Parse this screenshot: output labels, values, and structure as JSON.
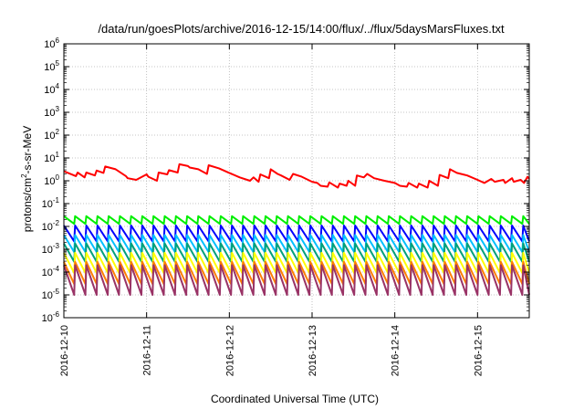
{
  "chart_data": {
    "type": "line",
    "title": "/data/run/goesPlots/archive/2016-12-15/14:00/flux/../flux/5daysMarsFluxes.txt",
    "xlabel": "Coordinated Universal Time (UTC)",
    "ylabel": "protons/cm²-s-sr-MeV",
    "yscale": "log",
    "ylim": [
      1e-06,
      1000000.0
    ],
    "xlim": [
      "2016-12-10",
      "2016-12-15 15:00"
    ],
    "grid": true,
    "legend": "none",
    "x_ticks": [
      "2016-12-10",
      "2016-12-11",
      "2016-12-12",
      "2016-12-13",
      "2016-12-14",
      "2016-12-15"
    ],
    "y_ticks": [
      {
        "base": "10",
        "exp": "-6"
      },
      {
        "base": "10",
        "exp": "-5"
      },
      {
        "base": "10",
        "exp": "-4"
      },
      {
        "base": "10",
        "exp": "-3"
      },
      {
        "base": "10",
        "exp": "-2"
      },
      {
        "base": "10",
        "exp": "-1"
      },
      {
        "base": "10",
        "exp": "0"
      },
      {
        "base": "10",
        "exp": "1"
      },
      {
        "base": "10",
        "exp": "2"
      },
      {
        "base": "10",
        "exp": "3"
      },
      {
        "base": "10",
        "exp": "4"
      },
      {
        "base": "10",
        "exp": "5"
      },
      {
        "base": "10",
        "exp": "6"
      }
    ],
    "series": [
      {
        "color": "#ff0000",
        "x": [
          "2016-12-10 00:00",
          "2016-12-10 03:30",
          "2016-12-10 04:00",
          "2016-12-10 06:00",
          "2016-12-10 06:30",
          "2016-12-10 09:00",
          "2016-12-10 09:30",
          "2016-12-10 11:30",
          "2016-12-10 12:00",
          "2016-12-10 15:00",
          "2016-12-10 18:00",
          "2016-12-10 18:30",
          "2016-12-10 21:00",
          "2016-12-11 00:00",
          "2016-12-11 00:30",
          "2016-12-11 03:00",
          "2016-12-11 03:30",
          "2016-12-11 06:00",
          "2016-12-11 06:30",
          "2016-12-11 09:00",
          "2016-12-11 09:30",
          "2016-12-11 12:00",
          "2016-12-11 12:30",
          "2016-12-11 15:00",
          "2016-12-11 17:30",
          "2016-12-11 18:00",
          "2016-12-11 21:00",
          "2016-12-12 00:00",
          "2016-12-12 03:00",
          "2016-12-12 06:00",
          "2016-12-12 07:00",
          "2016-12-12 08:30",
          "2016-12-12 09:00",
          "2016-12-12 11:30",
          "2016-12-12 12:00",
          "2016-12-12 14:00",
          "2016-12-12 15:00",
          "2016-12-12 17:30",
          "2016-12-12 18:30",
          "2016-12-12 21:00",
          "2016-12-13 00:00",
          "2016-12-13 01:30",
          "2016-12-13 02:30",
          "2016-12-13 04:30",
          "2016-12-13 05:00",
          "2016-12-13 07:30",
          "2016-12-13 08:00",
          "2016-12-13 10:00",
          "2016-12-13 10:30",
          "2016-12-13 12:30",
          "2016-12-13 13:00",
          "2016-12-13 15:00",
          "2016-12-13 16:00",
          "2016-12-13 18:00",
          "2016-12-13 21:00",
          "2016-12-14 00:00",
          "2016-12-14 01:30",
          "2016-12-14 03:30",
          "2016-12-14 04:00",
          "2016-12-14 06:30",
          "2016-12-14 07:00",
          "2016-12-14 09:30",
          "2016-12-14 10:00",
          "2016-12-14 12:30",
          "2016-12-14 13:00",
          "2016-12-14 15:30",
          "2016-12-14 16:00",
          "2016-12-14 18:00",
          "2016-12-14 21:00",
          "2016-12-15 00:00",
          "2016-12-15 02:00",
          "2016-12-15 04:00",
          "2016-12-15 05:00",
          "2016-12-15 07:30",
          "2016-12-15 08:00",
          "2016-12-15 10:00",
          "2016-12-15 10:30",
          "2016-12-15 12:30",
          "2016-12-15 13:30",
          "2016-12-15 14:30",
          "2016-12-15 15:00"
        ],
        "y": [
          2.6,
          1.6,
          2.3,
          1.4,
          2.3,
          1.7,
          2.8,
          2.2,
          4.2,
          3.2,
          1.6,
          1.3,
          1.1,
          1.9,
          1.5,
          1.0,
          2.3,
          1.9,
          2.9,
          2.3,
          5.3,
          4.4,
          3.8,
          3.2,
          2.0,
          4.8,
          3.5,
          2.2,
          1.4,
          1.0,
          1.4,
          0.9,
          1.9,
          1.3,
          3.2,
          2.0,
          1.7,
          1.1,
          2.0,
          1.5,
          0.9,
          0.8,
          0.6,
          0.55,
          0.85,
          0.5,
          0.75,
          0.6,
          1.0,
          0.6,
          1.7,
          1.4,
          2.0,
          1.3,
          1.0,
          0.8,
          0.6,
          0.55,
          0.8,
          0.5,
          0.75,
          0.5,
          1.0,
          0.6,
          1.8,
          1.3,
          3.2,
          2.2,
          1.7,
          1.1,
          0.8,
          1.2,
          0.9,
          1.1,
          0.8,
          1.3,
          0.9,
          1.1,
          0.8,
          1.5,
          1.2
        ]
      },
      {
        "color": "#00ee00",
        "x_start": "2016-12-10 00:00",
        "x_end": "2016-12-15 15:00",
        "period_hours": 3.25,
        "y_high": 0.028,
        "y_low": 0.013
      },
      {
        "color": "#0000ff",
        "x_start": "2016-12-10 00:00",
        "x_end": "2016-12-15 15:00",
        "period_hours": 3.25,
        "y_high": 0.011,
        "y_low": 0.0022
      },
      {
        "color": "#00bfff",
        "x_start": "2016-12-10 00:00",
        "x_end": "2016-12-15 15:00",
        "period_hours": 3.25,
        "y_high": 0.0042,
        "y_low": 0.00075
      },
      {
        "color": "#00a07a",
        "x_start": "2016-12-10 00:00",
        "x_end": "2016-12-15 15:00",
        "period_hours": 3.25,
        "y_high": 0.0018,
        "y_low": 0.00028
      },
      {
        "color": "#ffff00",
        "x_start": "2016-12-10 00:00",
        "x_end": "2016-12-15 15:00",
        "period_hours": 3.25,
        "y_high": 0.0007,
        "y_low": 9e-05
      },
      {
        "color": "#ff7f00",
        "x_start": "2016-12-10 00:00",
        "x_end": "2016-12-15 15:00",
        "period_hours": 3.25,
        "y_high": 0.00028,
        "y_low": 3e-05
      },
      {
        "color": "#993366",
        "x_start": "2016-12-10 00:00",
        "x_end": "2016-12-15 15:00",
        "period_hours": 3.25,
        "y_high": 0.0002,
        "y_low": 1e-05
      }
    ]
  }
}
